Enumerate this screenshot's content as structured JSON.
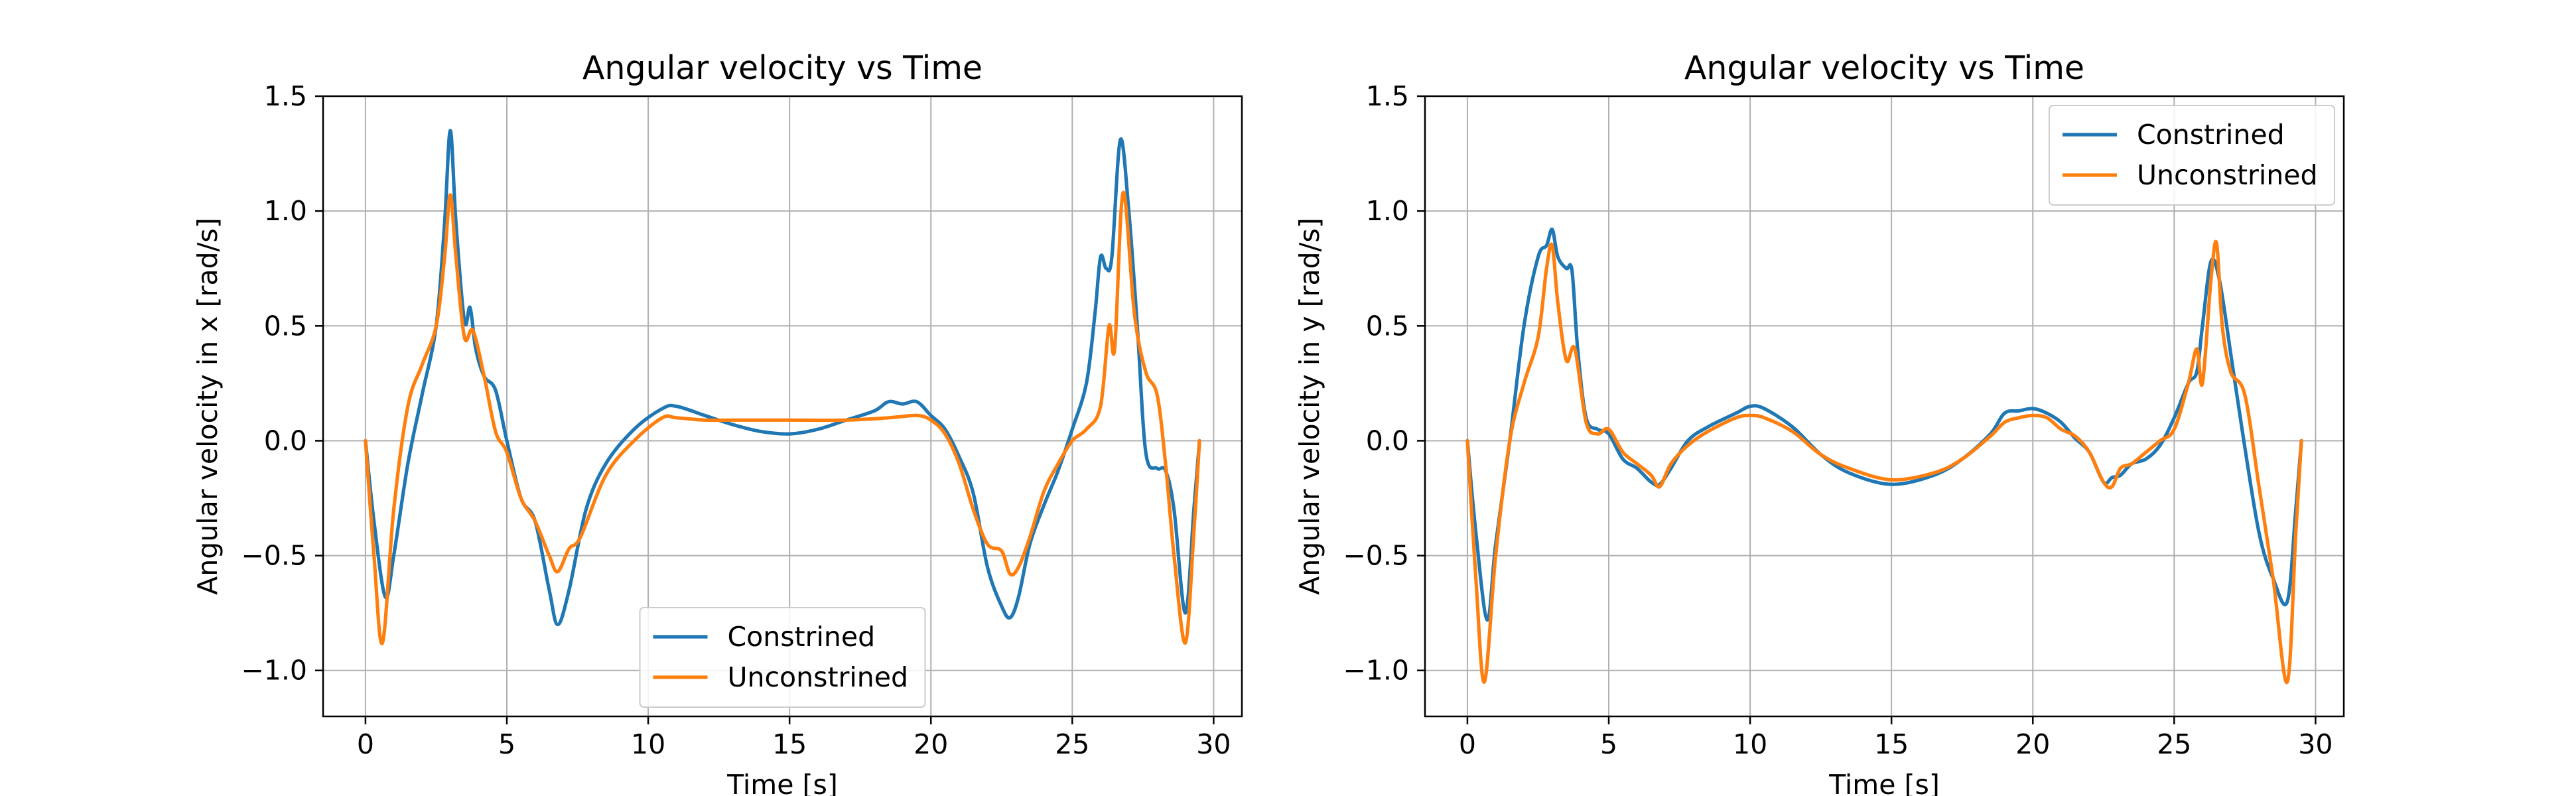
{
  "chart_data": [
    {
      "type": "line",
      "title": "Angular velocity vs Time",
      "xlabel": "Time [s]",
      "ylabel": "Angular velocity in x [rad/s]",
      "xlim": [
        -1.5,
        31
      ],
      "ylim": [
        -1.2,
        1.5
      ],
      "xticks": [
        0,
        5,
        10,
        15,
        20,
        25,
        30
      ],
      "yticks": [
        -1.0,
        -0.5,
        0.0,
        0.5,
        1.0,
        1.5
      ],
      "xtick_labels": [
        "0",
        "5",
        "10",
        "15",
        "20",
        "25",
        "30"
      ],
      "ytick_labels": [
        "−1.0",
        "−0.5",
        "0.0",
        "0.5",
        "1.0",
        "1.5"
      ],
      "grid": true,
      "legend": "lower center",
      "series": [
        {
          "name": "Constrined",
          "color": "#1f77b4",
          "x": [
            0,
            0.3,
            0.7,
            1.0,
            1.5,
            2.0,
            2.5,
            2.8,
            3.0,
            3.2,
            3.5,
            3.7,
            3.9,
            4.2,
            4.6,
            5.0,
            5.5,
            6.0,
            6.5,
            6.8,
            7.2,
            7.8,
            8.5,
            9.5,
            10.5,
            11.0,
            12.0,
            13.0,
            14.0,
            15.0,
            16.0,
            17.0,
            18.0,
            18.5,
            19.0,
            19.5,
            20.0,
            20.5,
            21.0,
            21.5,
            22.0,
            22.5,
            22.8,
            23.1,
            23.5,
            24.0,
            24.5,
            25.0,
            25.5,
            25.8,
            26.0,
            26.2,
            26.4,
            26.7,
            27.0,
            27.3,
            27.6,
            28.0,
            28.3,
            28.6,
            29.0,
            29.3,
            29.5
          ],
          "y": [
            0,
            -0.35,
            -0.68,
            -0.5,
            -0.1,
            0.2,
            0.5,
            0.95,
            1.35,
            0.95,
            0.52,
            0.58,
            0.4,
            0.28,
            0.22,
            0.0,
            -0.25,
            -0.35,
            -0.65,
            -0.8,
            -0.65,
            -0.3,
            -0.1,
            0.05,
            0.14,
            0.15,
            0.11,
            0.07,
            0.04,
            0.03,
            0.05,
            0.09,
            0.13,
            0.17,
            0.16,
            0.17,
            0.11,
            0.05,
            -0.07,
            -0.23,
            -0.55,
            -0.72,
            -0.77,
            -0.68,
            -0.45,
            -0.28,
            -0.13,
            0.05,
            0.25,
            0.55,
            0.8,
            0.75,
            0.8,
            1.31,
            1.0,
            0.5,
            -0.05,
            -0.12,
            -0.13,
            -0.3,
            -0.75,
            -0.3,
            0
          ]
        },
        {
          "name": "Unconstrined",
          "color": "#ff7f0e",
          "x": [
            0,
            0.3,
            0.6,
            1.0,
            1.5,
            2.0,
            2.5,
            2.8,
            3.0,
            3.2,
            3.5,
            3.8,
            4.2,
            4.6,
            5.0,
            5.5,
            6.0,
            6.5,
            6.8,
            7.2,
            7.6,
            8.5,
            9.5,
            10.5,
            11.0,
            12.0,
            13.0,
            15.0,
            17.0,
            18.5,
            19.5,
            20.0,
            20.5,
            21.0,
            21.5,
            22.0,
            22.5,
            22.8,
            23.1,
            23.5,
            24.0,
            24.5,
            25.0,
            25.5,
            26.0,
            26.3,
            26.5,
            26.8,
            27.2,
            27.6,
            28.0,
            28.3,
            28.6,
            29.0,
            29.3,
            29.5
          ],
          "y": [
            0,
            -0.5,
            -0.88,
            -0.3,
            0.15,
            0.33,
            0.5,
            0.8,
            1.07,
            0.8,
            0.45,
            0.48,
            0.28,
            0.04,
            -0.05,
            -0.25,
            -0.35,
            -0.5,
            -0.57,
            -0.47,
            -0.42,
            -0.15,
            0.0,
            0.1,
            0.1,
            0.09,
            0.09,
            0.09,
            0.09,
            0.1,
            0.11,
            0.09,
            0.03,
            -0.1,
            -0.3,
            -0.45,
            -0.48,
            -0.58,
            -0.55,
            -0.42,
            -0.22,
            -0.1,
            0.0,
            0.05,
            0.15,
            0.5,
            0.4,
            1.08,
            0.55,
            0.3,
            0.2,
            -0.1,
            -0.5,
            -0.88,
            -0.4,
            0
          ]
        }
      ]
    },
    {
      "type": "line",
      "title": "Angular velocity vs Time",
      "xlabel": "Time [s]",
      "ylabel": "Angular velocity in y [rad/s]",
      "xlim": [
        -1.5,
        31
      ],
      "ylim": [
        -1.2,
        1.5
      ],
      "xticks": [
        0,
        5,
        10,
        15,
        20,
        25,
        30
      ],
      "yticks": [
        -1.0,
        -0.5,
        0.0,
        0.5,
        1.0,
        1.5
      ],
      "xtick_labels": [
        "0",
        "5",
        "10",
        "15",
        "20",
        "25",
        "30"
      ],
      "ytick_labels": [
        "−1.0",
        "−0.5",
        "0.0",
        "0.5",
        "1.0",
        "1.5"
      ],
      "grid": true,
      "legend": "upper right",
      "series": [
        {
          "name": "Constrined",
          "color": "#1f77b4",
          "x": [
            0,
            0.3,
            0.7,
            1.0,
            1.5,
            2.0,
            2.5,
            2.8,
            3.0,
            3.2,
            3.5,
            3.7,
            3.9,
            4.2,
            4.6,
            5.0,
            5.5,
            6.0,
            6.5,
            6.8,
            7.2,
            7.8,
            8.5,
            9.5,
            10.0,
            10.5,
            11.5,
            12.5,
            13.5,
            15.0,
            16.5,
            17.5,
            18.5,
            19.0,
            19.5,
            20.0,
            20.5,
            21.0,
            21.5,
            22.0,
            22.5,
            22.8,
            23.1,
            23.5,
            24.0,
            24.5,
            25.0,
            25.5,
            25.8,
            26.0,
            26.3,
            26.6,
            27.0,
            27.4,
            28.0,
            28.5,
            29.0,
            29.3,
            29.5
          ],
          "y": [
            0,
            -0.4,
            -0.78,
            -0.45,
            0.0,
            0.5,
            0.8,
            0.85,
            0.92,
            0.8,
            0.75,
            0.74,
            0.4,
            0.1,
            0.05,
            0.03,
            -0.08,
            -0.12,
            -0.18,
            -0.19,
            -0.12,
            0.0,
            0.06,
            0.12,
            0.15,
            0.14,
            0.06,
            -0.06,
            -0.14,
            -0.19,
            -0.15,
            -0.08,
            0.03,
            0.12,
            0.13,
            0.14,
            0.12,
            0.08,
            0.01,
            -0.05,
            -0.18,
            -0.16,
            -0.15,
            -0.1,
            -0.08,
            -0.02,
            0.1,
            0.25,
            0.3,
            0.5,
            0.78,
            0.7,
            0.38,
            0.05,
            -0.4,
            -0.6,
            -0.7,
            -0.3,
            0
          ]
        },
        {
          "name": "Unconstrined",
          "color": "#ff7f0e",
          "x": [
            0,
            0.3,
            0.6,
            1.0,
            1.5,
            2.0,
            2.5,
            2.8,
            3.0,
            3.2,
            3.5,
            3.8,
            4.2,
            4.6,
            5.0,
            5.5,
            6.0,
            6.5,
            6.8,
            7.2,
            7.8,
            8.5,
            9.5,
            10.0,
            10.5,
            11.5,
            12.5,
            13.5,
            15.0,
            16.5,
            17.5,
            18.5,
            19.0,
            19.5,
            20.0,
            20.5,
            21.0,
            21.5,
            22.0,
            22.5,
            22.8,
            23.1,
            23.5,
            24.0,
            24.5,
            25.0,
            25.5,
            25.8,
            26.0,
            26.3,
            26.5,
            26.7,
            27.0,
            27.5,
            28.0,
            28.5,
            29.0,
            29.3,
            29.5
          ],
          "y": [
            0,
            -0.6,
            -1.05,
            -0.5,
            0.0,
            0.25,
            0.45,
            0.75,
            0.85,
            0.6,
            0.35,
            0.4,
            0.08,
            0.03,
            0.05,
            -0.05,
            -0.1,
            -0.15,
            -0.2,
            -0.1,
            -0.02,
            0.04,
            0.1,
            0.11,
            0.1,
            0.04,
            -0.06,
            -0.12,
            -0.17,
            -0.14,
            -0.08,
            0.02,
            0.08,
            0.1,
            0.11,
            0.1,
            0.05,
            0.02,
            -0.05,
            -0.18,
            -0.2,
            -0.12,
            -0.1,
            -0.05,
            0.0,
            0.05,
            0.25,
            0.4,
            0.25,
            0.7,
            0.86,
            0.5,
            0.3,
            0.2,
            -0.2,
            -0.6,
            -1.05,
            -0.4,
            0
          ]
        }
      ]
    }
  ]
}
